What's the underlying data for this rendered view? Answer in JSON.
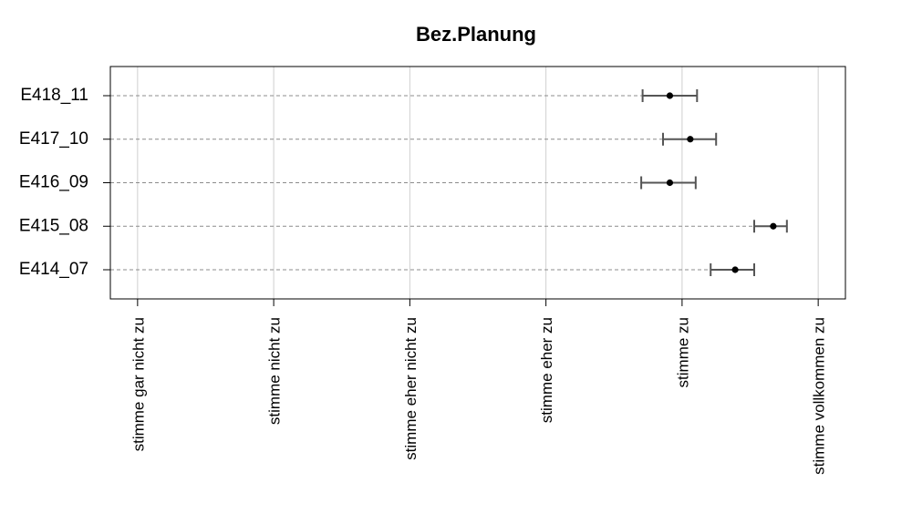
{
  "chart_data": {
    "type": "dot-errorbar",
    "title": "Bez.Planung",
    "xlabel": "",
    "ylabel": "",
    "xlim": [
      0.8,
      6.2
    ],
    "x_ticks": [
      {
        "value": 1,
        "label": "stimme gar nicht zu"
      },
      {
        "value": 2,
        "label": "stimme nicht zu"
      },
      {
        "value": 3,
        "label": "stimme eher nicht zu"
      },
      {
        "value": 4,
        "label": "stimme eher zu"
      },
      {
        "value": 5,
        "label": "stimme zu"
      },
      {
        "value": 6,
        "label": "stimme vollkommen zu"
      }
    ],
    "grid": {
      "vertical": true,
      "horizontal_dashed": true
    },
    "series": [
      {
        "points": [
          {
            "category": "E418_11",
            "value": 4.91,
            "lower": 4.71,
            "upper": 5.11
          },
          {
            "category": "E417_10",
            "value": 5.06,
            "lower": 4.86,
            "upper": 5.25
          },
          {
            "category": "E416_09",
            "value": 4.91,
            "lower": 4.7,
            "upper": 5.1
          },
          {
            "category": "E415_08",
            "value": 5.67,
            "lower": 5.53,
            "upper": 5.77
          },
          {
            "category": "E414_07",
            "value": 5.39,
            "lower": 5.21,
            "upper": 5.53
          }
        ]
      }
    ],
    "colors": {
      "point": "#000000",
      "errorbar": "#555555",
      "gridline": "#d0d0d0",
      "dashline": "#8c8c8c",
      "frame": "#000000"
    }
  }
}
